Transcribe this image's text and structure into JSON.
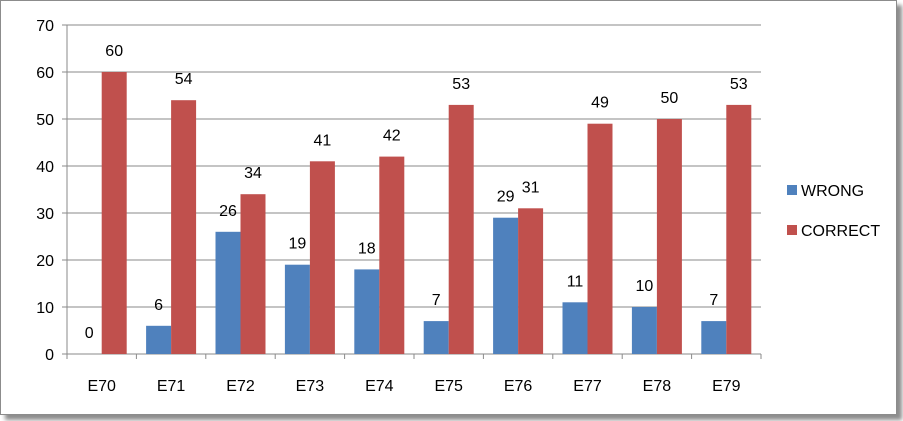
{
  "chart_data": {
    "type": "bar",
    "title": "",
    "xlabel": "",
    "ylabel": "",
    "categories": [
      "E70",
      "E71",
      "E72",
      "E73",
      "E74",
      "E75",
      "E76",
      "E77",
      "E78",
      "E79"
    ],
    "series": [
      {
        "name": "WRONG",
        "values": [
          0,
          6,
          26,
          19,
          18,
          7,
          29,
          11,
          10,
          7
        ],
        "color": "#4f81bd"
      },
      {
        "name": "CORRECT",
        "values": [
          60,
          54,
          34,
          41,
          42,
          53,
          31,
          49,
          50,
          53
        ],
        "color": "#c0504d"
      }
    ],
    "ylim": [
      0,
      70
    ],
    "yticks": [
      0,
      10,
      20,
      30,
      40,
      50,
      60,
      70
    ],
    "grid": true,
    "legend": "right",
    "data_labels": true
  }
}
